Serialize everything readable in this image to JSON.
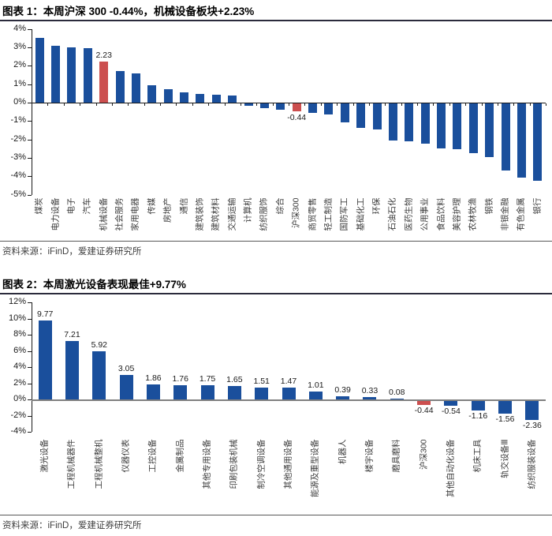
{
  "colors": {
    "bar_blue": "#1a4f9c",
    "bar_red": "#cc4f4f",
    "axis": "#1a1a1a",
    "zero_line_chart2": "#808080",
    "title_text": "#000000",
    "source_text": "#404040"
  },
  "chart_data": [
    {
      "type": "bar",
      "title": "图表 1：本周沪深 300 -0.44%，机械设备板块+2.23%",
      "source": "资料来源：iFinD，爱建证券研究所",
      "xlabel": "",
      "ylabel": "",
      "ylim": [
        -5,
        4
      ],
      "ytick_step": 1,
      "ytick_format": "percent",
      "grid": false,
      "legend_position": "none",
      "categories": [
        "煤炭",
        "电力设备",
        "电子",
        "汽车",
        "机械设备",
        "社会服务",
        "家用电器",
        "传媒",
        "房地产",
        "通信",
        "建筑装饰",
        "建筑材料",
        "交通运输",
        "计算机",
        "纺织服饰",
        "综合",
        "沪深300",
        "商贸零售",
        "轻工制造",
        "国防军工",
        "基础化工",
        "环保",
        "石油石化",
        "医药生物",
        "公用事业",
        "食品饮料",
        "美容护理",
        "农林牧渔",
        "钢铁",
        "非银金融",
        "有色金属",
        "银行"
      ],
      "values": [
        3.5,
        3.1,
        3.0,
        2.95,
        2.23,
        1.7,
        1.6,
        0.95,
        0.75,
        0.55,
        0.46,
        0.43,
        0.39,
        -0.15,
        -0.25,
        -0.36,
        -0.44,
        -0.5,
        -0.62,
        -1.02,
        -1.33,
        -1.43,
        -2.0,
        -2.07,
        -2.19,
        -2.45,
        -2.5,
        -2.72,
        -2.93,
        -3.66,
        -4.02,
        -4.22
      ],
      "red_bar_indices": [
        4,
        16
      ],
      "value_labels": [
        {
          "index": 4,
          "text": "2.23"
        },
        {
          "index": 16,
          "text": "-0.44"
        }
      ]
    },
    {
      "type": "bar",
      "title": "图表 2：本周激光设备表现最佳+9.77%",
      "source": "资料来源：iFinD，爱建证券研究所",
      "xlabel": "",
      "ylabel": "",
      "ylim": [
        -4,
        12
      ],
      "ytick_step": 2,
      "ytick_format": "percent",
      "grid": false,
      "legend_position": "none",
      "categories": [
        "激光设备",
        "工程机械器件",
        "工程机械整机",
        "仪器仪表",
        "工控设备",
        "金属制品",
        "其他专用设备",
        "印刷包装机械",
        "制冷空调设备",
        "其他通用设备",
        "能源及重型设备",
        "机器人",
        "楼宇设备",
        "磨具磨料",
        "沪深300",
        "其他自动化设备",
        "机床工具",
        "轨交设备Ⅲ",
        "纺织服装设备"
      ],
      "values": [
        9.77,
        7.21,
        5.92,
        3.05,
        1.86,
        1.76,
        1.75,
        1.65,
        1.51,
        1.47,
        1.01,
        0.39,
        0.33,
        0.08,
        -0.44,
        -0.54,
        -1.16,
        -1.56,
        -2.36
      ],
      "red_bar_indices": [
        14
      ],
      "value_labels": [
        {
          "index": 0,
          "text": "9.77"
        },
        {
          "index": 1,
          "text": "7.21"
        },
        {
          "index": 2,
          "text": "5.92"
        },
        {
          "index": 3,
          "text": "3.05"
        },
        {
          "index": 4,
          "text": "1.86"
        },
        {
          "index": 5,
          "text": "1.76"
        },
        {
          "index": 6,
          "text": "1.75"
        },
        {
          "index": 7,
          "text": "1.65"
        },
        {
          "index": 8,
          "text": "1.51"
        },
        {
          "index": 9,
          "text": "1.47"
        },
        {
          "index": 10,
          "text": "1.01"
        },
        {
          "index": 11,
          "text": "0.39"
        },
        {
          "index": 12,
          "text": "0.33"
        },
        {
          "index": 13,
          "text": "0.08"
        },
        {
          "index": 14,
          "text": "-0.44"
        },
        {
          "index": 15,
          "text": "-0.54"
        },
        {
          "index": 16,
          "text": "-1.16"
        },
        {
          "index": 17,
          "text": "-1.56"
        },
        {
          "index": 18,
          "text": "-2.36"
        }
      ]
    }
  ]
}
